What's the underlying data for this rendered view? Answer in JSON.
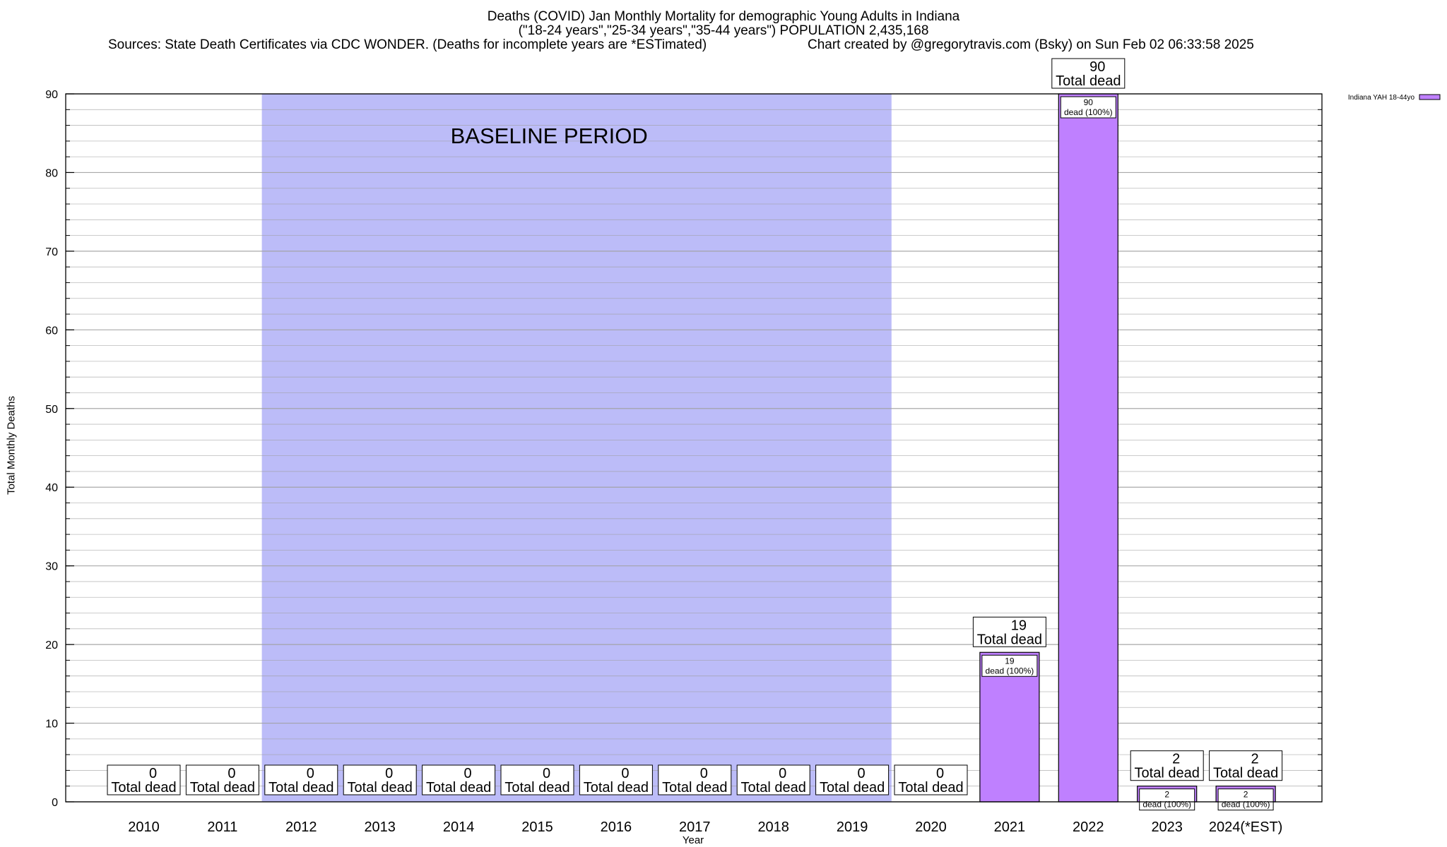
{
  "header": {
    "title_line1": "Deaths (COVID) Jan Monthly Mortality for demographic Young Adults in Indiana",
    "title_line2": "(\"18-24 years\",\"25-34 years\",\"35-44 years\") POPULATION 2,435,168",
    "source": "Sources: State Death Certificates via CDC WONDER. (Deaths for incomplete years are *ESTimated)",
    "credit": "Chart created by @gregorytravis.com (Bsky) on Sun Feb 02 06:33:58 2025"
  },
  "colors": {
    "bar": "#bf80ff",
    "baseline_band": "#bcbcf8",
    "grid": "#a0a0a0"
  },
  "chart_data": {
    "type": "bar",
    "title": "Deaths (COVID) Jan Monthly Mortality for demographic Young Adults in Indiana",
    "xlabel": "Year",
    "ylabel": "Total Monthly Deaths",
    "ylim": [
      0,
      90
    ],
    "yticks": [
      0,
      10,
      20,
      30,
      40,
      50,
      60,
      70,
      80,
      90
    ],
    "grid": true,
    "legend_position": "top-right",
    "categories": [
      "2010",
      "2011",
      "2012",
      "2013",
      "2014",
      "2015",
      "2016",
      "2017",
      "2018",
      "2019",
      "2020",
      "2021",
      "2022",
      "2023",
      "2024(*EST)"
    ],
    "series": [
      {
        "name": "Indiana YAH 18-44yo",
        "values": [
          0,
          0,
          0,
          0,
          0,
          0,
          0,
          0,
          0,
          0,
          0,
          19,
          90,
          2,
          2
        ]
      }
    ],
    "total_label_suffix": "Total dead",
    "bar_label_suffix": "dead (100%)",
    "baseline": {
      "label": "BASELINE PERIOD",
      "from": "2012",
      "to": "2019"
    }
  }
}
